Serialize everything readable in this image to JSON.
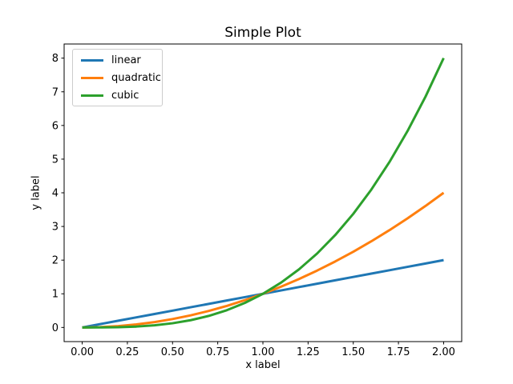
{
  "figure": {
    "background": "#ffffff",
    "text_color": "#000000",
    "axis_color": "#000000"
  },
  "chart_data": {
    "type": "line",
    "title": "Simple Plot",
    "xlabel": "x label",
    "ylabel": "y label",
    "x": [
      0,
      0.1,
      0.2,
      0.3,
      0.4,
      0.5,
      0.6,
      0.7,
      0.8,
      0.9,
      1.0,
      1.1,
      1.2,
      1.3,
      1.4,
      1.5,
      1.6,
      1.7,
      1.8,
      1.9,
      2.0
    ],
    "series": [
      {
        "name": "linear",
        "color": "#1f77b4",
        "values": [
          0,
          0.1,
          0.2,
          0.3,
          0.4,
          0.5,
          0.6,
          0.7,
          0.8,
          0.9,
          1.0,
          1.1,
          1.2,
          1.3,
          1.4,
          1.5,
          1.6,
          1.7,
          1.8,
          1.9,
          2.0
        ]
      },
      {
        "name": "quadratic",
        "color": "#ff7f0e",
        "values": [
          0,
          0.01,
          0.04,
          0.09,
          0.16,
          0.25,
          0.36,
          0.49,
          0.64,
          0.81,
          1.0,
          1.21,
          1.44,
          1.69,
          1.96,
          2.25,
          2.56,
          2.89,
          3.24,
          3.61,
          4.0
        ]
      },
      {
        "name": "cubic",
        "color": "#2ca02c",
        "values": [
          0,
          0.001,
          0.008,
          0.027,
          0.064,
          0.125,
          0.216,
          0.343,
          0.512,
          0.729,
          1.0,
          1.331,
          1.728,
          2.197,
          2.744,
          3.375,
          4.096,
          4.913,
          5.832,
          6.859,
          8.0
        ]
      }
    ],
    "xlim": [
      -0.1,
      2.1
    ],
    "ylim": [
      -0.42,
      8.42
    ],
    "xticks": {
      "values": [
        0,
        0.25,
        0.5,
        0.75,
        1.0,
        1.25,
        1.5,
        1.75,
        2.0
      ],
      "labels": [
        "0.00",
        "0.25",
        "0.50",
        "0.75",
        "1.00",
        "1.25",
        "1.50",
        "1.75",
        "2.00"
      ]
    },
    "yticks": {
      "values": [
        0,
        1,
        2,
        3,
        4,
        5,
        6,
        7,
        8
      ],
      "labels": [
        "0",
        "1",
        "2",
        "3",
        "4",
        "5",
        "6",
        "7",
        "8"
      ]
    },
    "legend": {
      "position": "upper left",
      "entries": [
        "linear",
        "quadratic",
        "cubic"
      ]
    },
    "grid": false,
    "line_width": 3
  }
}
